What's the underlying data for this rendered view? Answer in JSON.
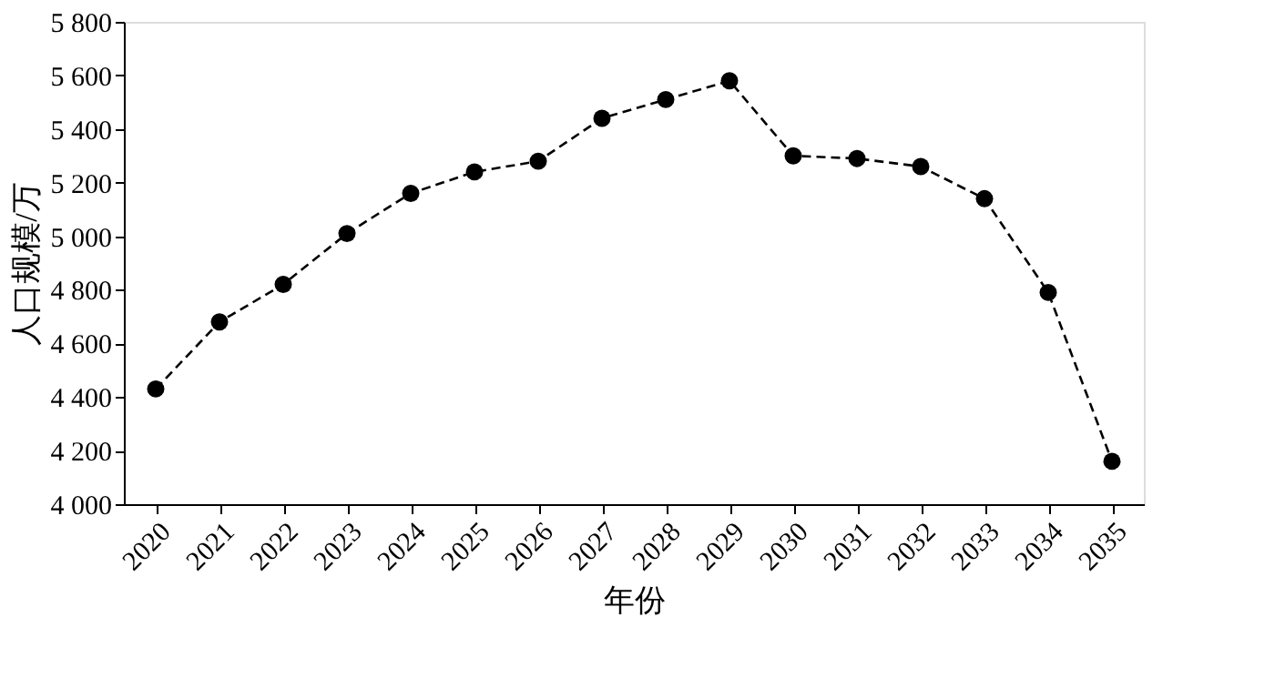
{
  "chart_data": {
    "type": "line",
    "xlabel": "年份",
    "ylabel": "人口规模/万",
    "categories": [
      "2020",
      "2021",
      "2022",
      "2023",
      "2024",
      "2025",
      "2026",
      "2027",
      "2028",
      "2029",
      "2030",
      "2031",
      "2032",
      "2033",
      "2034",
      "2035"
    ],
    "series": [
      {
        "color": "#000000",
        "values": [
          4430,
          4680,
          4820,
          5010,
          5160,
          5240,
          5280,
          5440,
          5510,
          5580,
          5300,
          5290,
          5260,
          5140,
          4790,
          4160
        ]
      }
    ],
    "ylim": [
      4000,
      5800
    ],
    "yticks": [
      {
        "value": 4000,
        "label": "4 000"
      },
      {
        "value": 4200,
        "label": "4 200"
      },
      {
        "value": 4400,
        "label": "4 400"
      },
      {
        "value": 4600,
        "label": "4 600"
      },
      {
        "value": 4800,
        "label": "4 800"
      },
      {
        "value": 5000,
        "label": "5 000"
      },
      {
        "value": 5200,
        "label": "5 200"
      },
      {
        "value": 5400,
        "label": "5 400"
      },
      {
        "value": 5600,
        "label": "5 600"
      },
      {
        "value": 5800,
        "label": "5 800"
      }
    ],
    "marker": "circle",
    "line_style": "dashed",
    "grid": false
  }
}
